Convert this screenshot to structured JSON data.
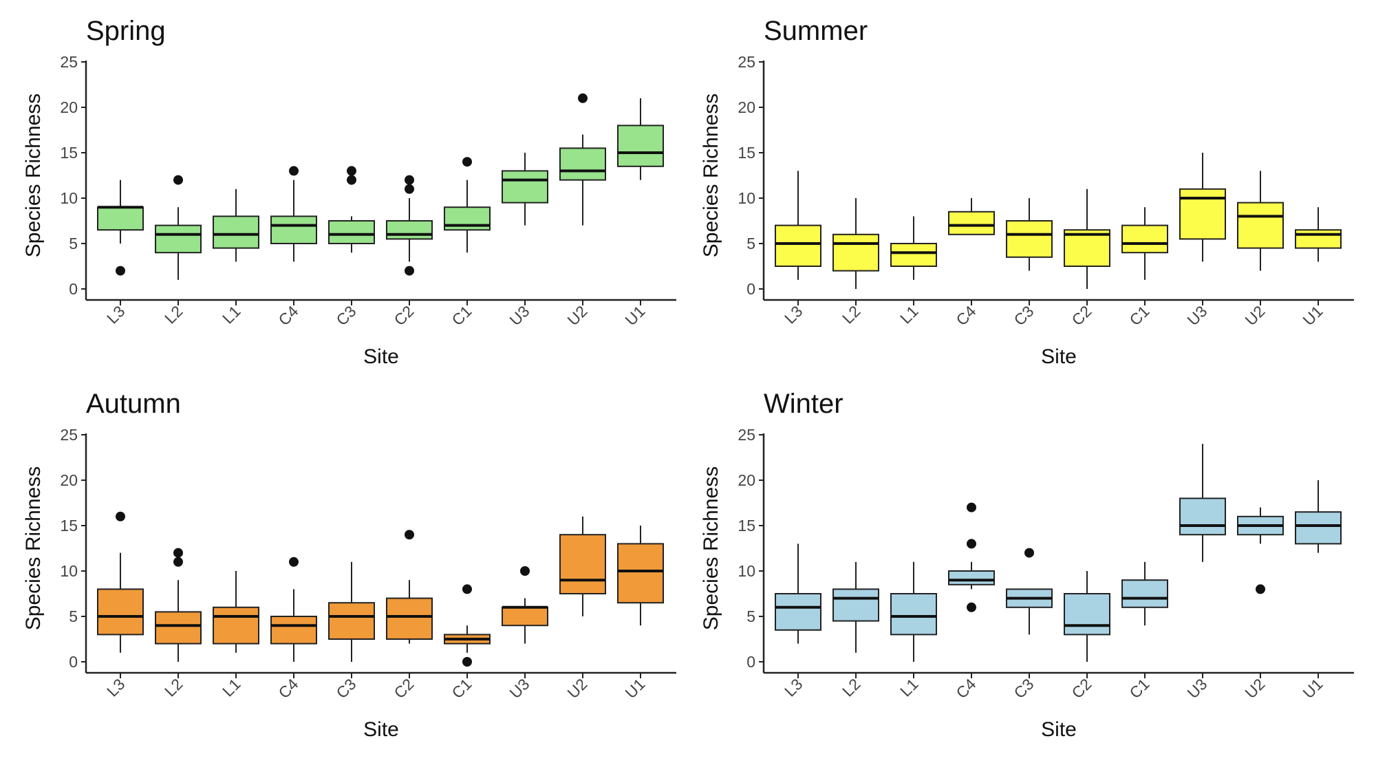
{
  "chart_data": [
    {
      "type": "box",
      "title": "Spring",
      "xlabel": "Site",
      "ylabel": "Species Richness",
      "ylim": [
        0,
        25
      ],
      "yticks": [
        0,
        5,
        10,
        15,
        20,
        25
      ],
      "fill": "#98e38c",
      "categories": [
        "L3",
        "L2",
        "L1",
        "C4",
        "C3",
        "C2",
        "C1",
        "U3",
        "U2",
        "U1"
      ],
      "boxes": [
        {
          "min": 5,
          "q1": 6.5,
          "median": 9,
          "q3": 9,
          "max": 12,
          "outliers": [
            2
          ]
        },
        {
          "min": 1,
          "q1": 4,
          "median": 6,
          "q3": 7,
          "max": 9,
          "outliers": [
            12
          ]
        },
        {
          "min": 3,
          "q1": 4.5,
          "median": 6,
          "q3": 8,
          "max": 11,
          "outliers": []
        },
        {
          "min": 3,
          "q1": 5,
          "median": 7,
          "q3": 8,
          "max": 12,
          "outliers": [
            13
          ]
        },
        {
          "min": 4,
          "q1": 5,
          "median": 6,
          "q3": 7.5,
          "max": 8,
          "outliers": [
            12,
            13
          ]
        },
        {
          "min": 3,
          "q1": 5.5,
          "median": 6,
          "q3": 7.5,
          "max": 10,
          "outliers": [
            2,
            11,
            12
          ]
        },
        {
          "min": 4,
          "q1": 6.5,
          "median": 7,
          "q3": 9,
          "max": 12,
          "outliers": [
            14
          ]
        },
        {
          "min": 7,
          "q1": 9.5,
          "median": 12,
          "q3": 13,
          "max": 15,
          "outliers": []
        },
        {
          "min": 7,
          "q1": 12,
          "median": 13,
          "q3": 15.5,
          "max": 17,
          "outliers": [
            21
          ]
        },
        {
          "min": 12,
          "q1": 13.5,
          "median": 15,
          "q3": 18,
          "max": 21,
          "outliers": []
        }
      ]
    },
    {
      "type": "box",
      "title": "Summer",
      "xlabel": "Site",
      "ylabel": "Species Richness",
      "ylim": [
        0,
        25
      ],
      "yticks": [
        0,
        5,
        10,
        15,
        20,
        25
      ],
      "fill": "#fcfc4a",
      "categories": [
        "L3",
        "L2",
        "L1",
        "C4",
        "C3",
        "C2",
        "C1",
        "U3",
        "U2",
        "U1"
      ],
      "boxes": [
        {
          "min": 1,
          "q1": 2.5,
          "median": 5,
          "q3": 7,
          "max": 13,
          "outliers": []
        },
        {
          "min": 0,
          "q1": 2,
          "median": 5,
          "q3": 6,
          "max": 10,
          "outliers": []
        },
        {
          "min": 1,
          "q1": 2.5,
          "median": 4,
          "q3": 5,
          "max": 8,
          "outliers": []
        },
        {
          "min": 6,
          "q1": 6,
          "median": 7,
          "q3": 8.5,
          "max": 10,
          "outliers": []
        },
        {
          "min": 2,
          "q1": 3.5,
          "median": 6,
          "q3": 7.5,
          "max": 10,
          "outliers": []
        },
        {
          "min": 0,
          "q1": 2.5,
          "median": 6,
          "q3": 6.5,
          "max": 11,
          "outliers": []
        },
        {
          "min": 1,
          "q1": 4,
          "median": 5,
          "q3": 7,
          "max": 9,
          "outliers": []
        },
        {
          "min": 3,
          "q1": 5.5,
          "median": 10,
          "q3": 11,
          "max": 15,
          "outliers": []
        },
        {
          "min": 2,
          "q1": 4.5,
          "median": 8,
          "q3": 9.5,
          "max": 13,
          "outliers": []
        },
        {
          "min": 3,
          "q1": 4.5,
          "median": 6,
          "q3": 6.5,
          "max": 9,
          "outliers": []
        }
      ]
    },
    {
      "type": "box",
      "title": "Autumn",
      "xlabel": "Site",
      "ylabel": "Species Richness",
      "ylim": [
        0,
        25
      ],
      "yticks": [
        0,
        5,
        10,
        15,
        20,
        25
      ],
      "fill": "#f09a3a",
      "categories": [
        "L3",
        "L2",
        "L1",
        "C4",
        "C3",
        "C2",
        "C1",
        "U3",
        "U2",
        "U1"
      ],
      "boxes": [
        {
          "min": 1,
          "q1": 3,
          "median": 5,
          "q3": 8,
          "max": 12,
          "outliers": [
            16
          ]
        },
        {
          "min": 0,
          "q1": 2,
          "median": 4,
          "q3": 5.5,
          "max": 9,
          "outliers": [
            11,
            12
          ]
        },
        {
          "min": 1,
          "q1": 2,
          "median": 5,
          "q3": 6,
          "max": 10,
          "outliers": []
        },
        {
          "min": 0,
          "q1": 2,
          "median": 4,
          "q3": 5,
          "max": 8,
          "outliers": [
            11
          ]
        },
        {
          "min": 0,
          "q1": 2.5,
          "median": 5,
          "q3": 6.5,
          "max": 11,
          "outliers": []
        },
        {
          "min": 2,
          "q1": 2.5,
          "median": 5,
          "q3": 7,
          "max": 9,
          "outliers": [
            14
          ]
        },
        {
          "min": 1,
          "q1": 2,
          "median": 2.5,
          "q3": 3,
          "max": 4,
          "outliers": [
            0,
            8
          ]
        },
        {
          "min": 2,
          "q1": 4,
          "median": 6,
          "q3": 6,
          "max": 7,
          "outliers": [
            10
          ]
        },
        {
          "min": 5,
          "q1": 7.5,
          "median": 9,
          "q3": 14,
          "max": 16,
          "outliers": []
        },
        {
          "min": 4,
          "q1": 6.5,
          "median": 10,
          "q3": 13,
          "max": 15,
          "outliers": []
        }
      ]
    },
    {
      "type": "box",
      "title": "Winter",
      "xlabel": "Site",
      "ylabel": "Species Richness",
      "ylim": [
        0,
        25
      ],
      "yticks": [
        0,
        5,
        10,
        15,
        20,
        25
      ],
      "fill": "#a9d2e3",
      "categories": [
        "L3",
        "L2",
        "L1",
        "C4",
        "C3",
        "C2",
        "C1",
        "U3",
        "U2",
        "U1"
      ],
      "boxes": [
        {
          "min": 2,
          "q1": 3.5,
          "median": 6,
          "q3": 7.5,
          "max": 13,
          "outliers": []
        },
        {
          "min": 1,
          "q1": 4.5,
          "median": 7,
          "q3": 8,
          "max": 11,
          "outliers": []
        },
        {
          "min": 0,
          "q1": 3,
          "median": 5,
          "q3": 7.5,
          "max": 11,
          "outliers": []
        },
        {
          "min": 8,
          "q1": 8.5,
          "median": 9,
          "q3": 10,
          "max": 11,
          "outliers": [
            6,
            13,
            17
          ]
        },
        {
          "min": 3,
          "q1": 6,
          "median": 7,
          "q3": 8,
          "max": 8,
          "outliers": [
            12
          ]
        },
        {
          "min": 0,
          "q1": 3,
          "median": 4,
          "q3": 7.5,
          "max": 10,
          "outliers": []
        },
        {
          "min": 4,
          "q1": 6,
          "median": 7,
          "q3": 9,
          "max": 11,
          "outliers": []
        },
        {
          "min": 11,
          "q1": 14,
          "median": 15,
          "q3": 18,
          "max": 24,
          "outliers": []
        },
        {
          "min": 13,
          "q1": 14,
          "median": 15,
          "q3": 16,
          "max": 17,
          "outliers": [
            8
          ]
        },
        {
          "min": 12,
          "q1": 13,
          "median": 15,
          "q3": 16.5,
          "max": 20,
          "outliers": []
        }
      ]
    }
  ]
}
